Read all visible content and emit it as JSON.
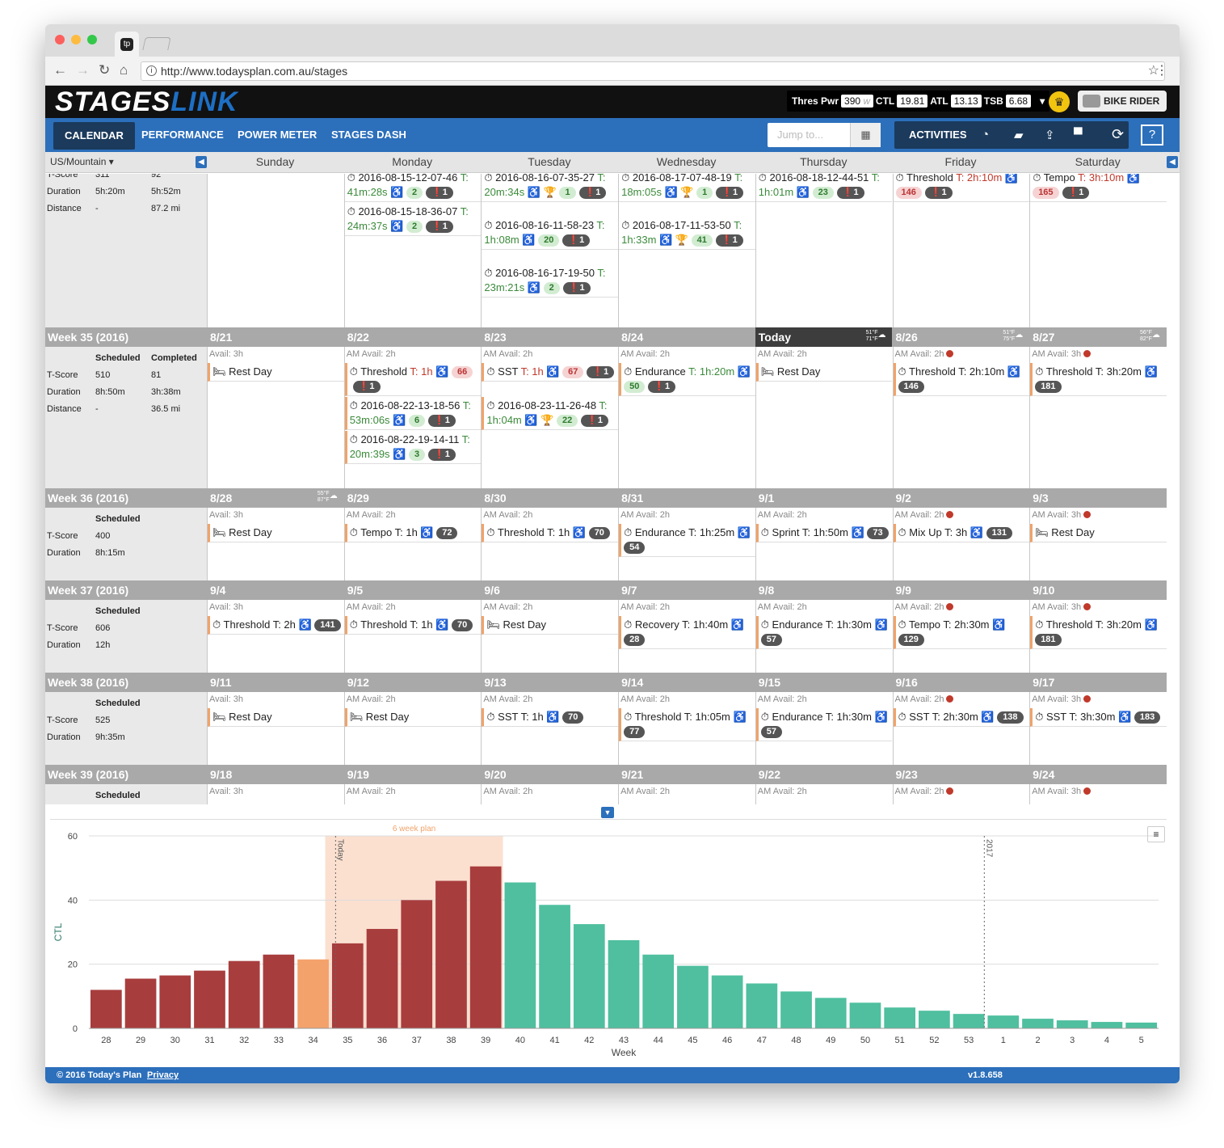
{
  "browser": {
    "url": "http://www.todaysplan.com.au/stages"
  },
  "brand": {
    "logo_a": "STAGES",
    "logo_b": "LINK"
  },
  "stats": {
    "thres_label": "Thres Pwr",
    "thres_value": "390",
    "thres_unit": "W",
    "ctl_label": "CTL",
    "ctl_value": "19.81",
    "atl_label": "ATL",
    "atl_value": "13.13",
    "tsb_label": "TSB",
    "tsb_value": "6.68"
  },
  "user": {
    "name": "BIKE RIDER ▾"
  },
  "nav": {
    "items": [
      "CALENDAR",
      "PERFORMANCE",
      "POWER METER",
      "STAGES DASH"
    ],
    "jump_placeholder": "Jump to...",
    "activities": "ACTIVITIES"
  },
  "calendar": {
    "timezone": "US/Mountain ▾",
    "days": [
      "Sunday",
      "Monday",
      "Tuesday",
      "Wednesday",
      "Thursday",
      "Friday",
      "Saturday"
    ],
    "weeks": [
      {
        "label": "",
        "stats_head": [],
        "stats": [
          [
            "T-Score",
            "311",
            "92"
          ],
          [
            "Duration",
            "5h:20m",
            "5h:52m"
          ],
          [
            "Distance",
            "-",
            "87.2 mi"
          ]
        ],
        "days": [
          {
            "date": "",
            "avail": "",
            "items": []
          },
          {
            "date": "",
            "avail": "",
            "items": [
              {
                "t": "⏱ 2016-08-15-12-07-46 T: 41m:28s ♿",
                "g": "2",
                "b": "❗1"
              },
              {
                "t": "⏱ 2016-08-15-18-36-07 T: 24m:37s ♿",
                "g": "2",
                "b": "❗1"
              }
            ]
          },
          {
            "date": "",
            "avail": "",
            "items": [
              {
                "t": "⏱ 2016-08-16-07-35-27 T: 20m:34s ♿ 🏆",
                "g": "1",
                "b": "❗1"
              },
              {
                "t": "⏱ 2016-08-16-11-58-23 T: 1h:08m ♿",
                "g": "20",
                "b": "❗1"
              },
              {
                "t": "⏱ 2016-08-16-17-19-50 T: 23m:21s ♿",
                "g": "2",
                "b": "❗1"
              }
            ]
          },
          {
            "date": "",
            "avail": "",
            "items": [
              {
                "t": "⏱ 2016-08-17-07-48-19 T: 18m:05s ♿ 🏆",
                "g": "1",
                "b": "❗1"
              },
              {
                "t": "⏱ 2016-08-17-11-53-50 T: 1h:33m ♿ 🏆",
                "g": "41",
                "b": "❗1"
              }
            ]
          },
          {
            "date": "",
            "avail": "",
            "items": [
              {
                "t": "⏱ 2016-08-18-12-44-51 T: 1h:01m ♿",
                "g": "23",
                "b": "❗1"
              }
            ]
          },
          {
            "date": "",
            "avail": "",
            "items": [
              {
                "t": "⏱ Threshold T: 2h:10m ♿",
                "r": "146",
                "b": "❗1"
              }
            ]
          },
          {
            "date": "",
            "avail": "",
            "items": [
              {
                "t": "⏱ Tempo T: 3h:10m ♿",
                "r": "165",
                "b": "❗1"
              }
            ]
          }
        ]
      },
      {
        "label": "Week 35 (2016)",
        "stats_head": [
          "Scheduled",
          "Completed"
        ],
        "stats": [
          [
            "T-Score",
            "510",
            "81"
          ],
          [
            "Duration",
            "8h:50m",
            "3h:38m"
          ],
          [
            "Distance",
            "-",
            "36.5 mi"
          ]
        ],
        "days": [
          {
            "date": "8/21",
            "avail": "Avail: 3h",
            "items": [
              {
                "t": "🛏 Rest Day"
              }
            ]
          },
          {
            "date": "8/22",
            "avail": "AM Avail: 2h",
            "items": [
              {
                "t": "⏱ Threshold T: 1h ♿",
                "r": "66",
                "b": "❗1"
              },
              {
                "t": "⏱ 2016-08-22-13-18-56 T: 53m:06s ♿",
                "g": "6",
                "b": "❗1"
              },
              {
                "t": "⏱ 2016-08-22-19-14-11 T: 20m:39s ♿",
                "g": "3",
                "b": "❗1"
              }
            ]
          },
          {
            "date": "8/23",
            "avail": "AM Avail: 2h",
            "items": [
              {
                "t": "⏱ SST T: 1h ♿",
                "r": "67",
                "b": "❗1"
              },
              {
                "t": "⏱ 2016-08-23-11-26-48 T: 1h:04m ♿ 🏆",
                "g": "22",
                "b": "❗1"
              }
            ]
          },
          {
            "date": "8/24",
            "avail": "AM Avail: 2h",
            "items": [
              {
                "t": "⏱ Endurance T: 1h:20m ♿",
                "g": "50",
                "b": "❗1"
              }
            ]
          },
          {
            "date": "Today",
            "avail": "AM Avail: 2h",
            "weather": "51°F 71°F",
            "items": [
              {
                "t": "🛏 Rest Day"
              }
            ]
          },
          {
            "date": "8/26",
            "avail": "AM Avail: 2h",
            "weather": "51°F 75°F",
            "items": [
              {
                "t": "⏱ Threshold T: 2h:10m ♿",
                "p": "146"
              }
            ]
          },
          {
            "date": "8/27",
            "avail": "AM Avail: 3h",
            "weather": "56°F 82°F",
            "items": [
              {
                "t": "⏱ Threshold T: 3h:20m ♿",
                "p": "181"
              }
            ]
          }
        ]
      },
      {
        "label": "Week 36 (2016)",
        "stats_head": [
          "Scheduled"
        ],
        "stats": [
          [
            "T-Score",
            "400"
          ],
          [
            "Duration",
            "8h:15m"
          ]
        ],
        "days": [
          {
            "date": "8/28",
            "avail": "Avail: 3h",
            "weather": "55°F 87°F",
            "items": [
              {
                "t": "🛏 Rest Day"
              }
            ]
          },
          {
            "date": "8/29",
            "avail": "AM Avail: 2h",
            "items": [
              {
                "t": "⏱ Tempo T: 1h ♿",
                "p": "72"
              }
            ]
          },
          {
            "date": "8/30",
            "avail": "AM Avail: 2h",
            "items": [
              {
                "t": "⏱ Threshold T: 1h ♿",
                "p": "70"
              }
            ]
          },
          {
            "date": "8/31",
            "avail": "AM Avail: 2h",
            "items": [
              {
                "t": "⏱ Endurance T: 1h:25m ♿",
                "p": "54"
              }
            ]
          },
          {
            "date": "9/1",
            "avail": "AM Avail: 2h",
            "items": [
              {
                "t": "⏱ Sprint T: 1h:50m ♿",
                "p": "73"
              }
            ]
          },
          {
            "date": "9/2",
            "avail": "AM Avail: 2h",
            "items": [
              {
                "t": "⏱ Mix Up T: 3h ♿",
                "p": "131"
              }
            ]
          },
          {
            "date": "9/3",
            "avail": "AM Avail: 3h",
            "items": [
              {
                "t": "🛏 Rest Day"
              }
            ]
          }
        ]
      },
      {
        "label": "Week 37 (2016)",
        "stats_head": [
          "Scheduled"
        ],
        "stats": [
          [
            "T-Score",
            "606"
          ],
          [
            "Duration",
            "12h"
          ]
        ],
        "days": [
          {
            "date": "9/4",
            "avail": "Avail: 3h",
            "items": [
              {
                "t": "⏱ Threshold T: 2h ♿",
                "p": "141"
              }
            ]
          },
          {
            "date": "9/5",
            "avail": "AM Avail: 2h",
            "items": [
              {
                "t": "⏱ Threshold T: 1h ♿",
                "p": "70"
              }
            ]
          },
          {
            "date": "9/6",
            "avail": "AM Avail: 2h",
            "items": [
              {
                "t": "🛏 Rest Day"
              }
            ]
          },
          {
            "date": "9/7",
            "avail": "AM Avail: 2h",
            "items": [
              {
                "t": "⏱ Recovery T: 1h:40m ♿",
                "p": "28"
              }
            ]
          },
          {
            "date": "9/8",
            "avail": "AM Avail: 2h",
            "items": [
              {
                "t": "⏱ Endurance T: 1h:30m ♿",
                "p": "57"
              }
            ]
          },
          {
            "date": "9/9",
            "avail": "AM Avail: 2h",
            "items": [
              {
                "t": "⏱ Tempo T: 2h:30m ♿",
                "p": "129"
              }
            ]
          },
          {
            "date": "9/10",
            "avail": "AM Avail: 3h",
            "items": [
              {
                "t": "⏱ Threshold T: 3h:20m ♿",
                "p": "181"
              }
            ]
          }
        ]
      },
      {
        "label": "Week 38 (2016)",
        "stats_head": [
          "Scheduled"
        ],
        "stats": [
          [
            "T-Score",
            "525"
          ],
          [
            "Duration",
            "9h:35m"
          ]
        ],
        "days": [
          {
            "date": "9/11",
            "avail": "Avail: 3h",
            "items": [
              {
                "t": "🛏 Rest Day"
              }
            ]
          },
          {
            "date": "9/12",
            "avail": "AM Avail: 2h",
            "items": [
              {
                "t": "🛏 Rest Day"
              }
            ]
          },
          {
            "date": "9/13",
            "avail": "AM Avail: 2h",
            "items": [
              {
                "t": "⏱ SST T: 1h ♿",
                "p": "70"
              }
            ]
          },
          {
            "date": "9/14",
            "avail": "AM Avail: 2h",
            "items": [
              {
                "t": "⏱ Threshold T: 1h:05m ♿",
                "p": "77"
              }
            ]
          },
          {
            "date": "9/15",
            "avail": "AM Avail: 2h",
            "items": [
              {
                "t": "⏱ Endurance T: 1h:30m ♿",
                "p": "57"
              }
            ]
          },
          {
            "date": "9/16",
            "avail": "AM Avail: 2h",
            "items": [
              {
                "t": "⏱ SST T: 2h:30m ♿",
                "p": "138"
              }
            ]
          },
          {
            "date": "9/17",
            "avail": "AM Avail: 3h",
            "items": [
              {
                "t": "⏱ SST T: 3h:30m ♿",
                "p": "183"
              }
            ]
          }
        ]
      },
      {
        "label": "Week 39 (2016)",
        "stats_head": [
          "Scheduled"
        ],
        "stats": [],
        "days": [
          {
            "date": "9/18",
            "avail": "Avail: 3h",
            "items": []
          },
          {
            "date": "9/19",
            "avail": "AM Avail: 2h",
            "items": []
          },
          {
            "date": "9/20",
            "avail": "AM Avail: 2h",
            "items": []
          },
          {
            "date": "9/21",
            "avail": "AM Avail: 2h",
            "items": []
          },
          {
            "date": "9/22",
            "avail": "AM Avail: 2h",
            "items": []
          },
          {
            "date": "9/23",
            "avail": "AM Avail: 2h",
            "items": []
          },
          {
            "date": "9/24",
            "avail": "AM Avail: 3h",
            "items": []
          }
        ]
      }
    ]
  },
  "chart_data": {
    "type": "bar",
    "xlabel": "Week",
    "ylabel": "CTL",
    "ylim": [
      0,
      60
    ],
    "yticks": [
      0,
      20,
      40,
      60
    ],
    "categories": [
      "28",
      "29",
      "30",
      "31",
      "32",
      "33",
      "34",
      "35",
      "36",
      "37",
      "38",
      "39",
      "40",
      "41",
      "42",
      "43",
      "44",
      "45",
      "46",
      "47",
      "48",
      "49",
      "50",
      "51",
      "52",
      "53",
      "1",
      "2",
      "3",
      "4",
      "5"
    ],
    "values": [
      12,
      15.5,
      16.5,
      18,
      21,
      23,
      21.5,
      26.5,
      31,
      40,
      46,
      50.5,
      45.5,
      38.5,
      32.5,
      27.5,
      23,
      19.5,
      16.5,
      14,
      11.5,
      9.5,
      8,
      6.5,
      5.5,
      4.5,
      4,
      3,
      2.5,
      2,
      1.8
    ],
    "bar_colors": [
      "#a83d3d",
      "#a83d3d",
      "#a83d3d",
      "#a83d3d",
      "#a83d3d",
      "#a83d3d",
      "#f4a26b",
      "#a83d3d",
      "#a83d3d",
      "#a83d3d",
      "#a83d3d",
      "#a83d3d",
      "#4fbf9f",
      "#4fbf9f",
      "#4fbf9f",
      "#4fbf9f",
      "#4fbf9f",
      "#4fbf9f",
      "#4fbf9f",
      "#4fbf9f",
      "#4fbf9f",
      "#4fbf9f",
      "#4fbf9f",
      "#4fbf9f",
      "#4fbf9f",
      "#4fbf9f",
      "#4fbf9f",
      "#4fbf9f",
      "#4fbf9f",
      "#4fbf9f",
      "#4fbf9f"
    ],
    "band": {
      "label": "6 week plan",
      "from_index": 6.85,
      "to_index": 12
    },
    "markers": [
      {
        "label": "Today",
        "at_index": 7.15
      },
      {
        "label": "2017",
        "at_index": 25.95
      }
    ],
    "grid": true
  },
  "footer": {
    "copyright": "© 2016 Today's Plan",
    "privacy": "Privacy",
    "version": "v1.8.658"
  }
}
